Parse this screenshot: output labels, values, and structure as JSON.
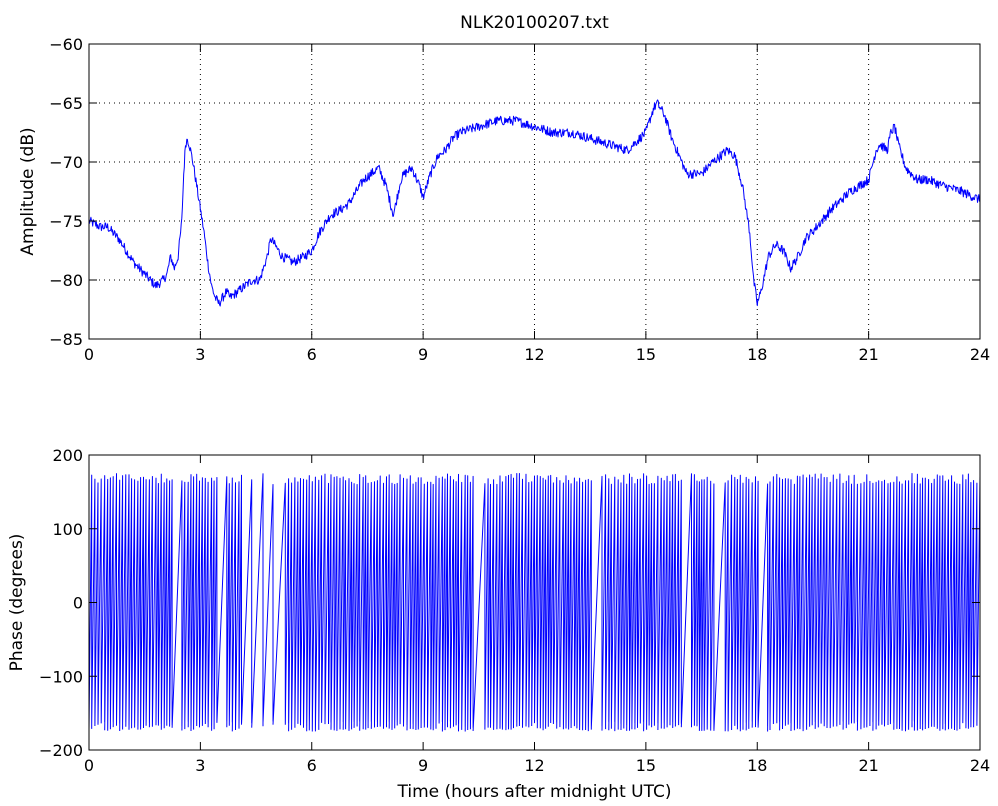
{
  "chart_data": [
    {
      "type": "line",
      "title": "NLK20100207.txt",
      "xlabel": "",
      "ylabel": "Amplitude (dB)",
      "xlim": [
        0,
        24
      ],
      "ylim": [
        -85,
        -60
      ],
      "xticks": [
        "0",
        "3",
        "6",
        "9",
        "12",
        "15",
        "18",
        "21",
        "24"
      ],
      "yticks": [
        "-85",
        "-80",
        "-75",
        "-70",
        "-65",
        "-60"
      ],
      "grid": true,
      "series": [
        {
          "color": "#0000ff",
          "x": [
            0,
            0.3,
            0.5,
            0.8,
            1.0,
            1.2,
            1.5,
            1.8,
            2.0,
            2.1,
            2.2,
            2.3,
            2.4,
            2.5,
            2.55,
            2.6,
            2.65,
            2.7,
            2.8,
            2.9,
            3.0,
            3.1,
            3.2,
            3.3,
            3.4,
            3.5,
            3.6,
            3.7,
            3.8,
            4.0,
            4.2,
            4.4,
            4.6,
            4.8,
            4.9,
            5.0,
            5.2,
            5.5,
            5.8,
            6.0,
            6.2,
            6.5,
            6.8,
            7.0,
            7.2,
            7.4,
            7.6,
            7.8,
            8.0,
            8.2,
            8.4,
            8.5,
            8.7,
            8.9,
            9.0,
            9.2,
            9.4,
            9.6,
            9.8,
            10.0,
            10.5,
            11.0,
            11.5,
            12.0,
            12.5,
            13.0,
            13.5,
            14.0,
            14.5,
            15.0,
            15.1,
            15.2,
            15.3,
            15.5,
            15.7,
            15.9,
            16.1,
            16.3,
            16.5,
            16.8,
            17.0,
            17.2,
            17.4,
            17.6,
            17.8,
            17.9,
            18.0,
            18.1,
            18.3,
            18.5,
            18.7,
            18.9,
            19.1,
            19.3,
            19.6,
            20.0,
            20.5,
            21.0,
            21.2,
            21.3,
            21.5,
            21.6,
            21.7,
            21.8,
            22.0,
            22.3,
            22.6,
            23.0,
            23.5,
            24.0
          ],
          "y": [
            -75,
            -75.5,
            -75.5,
            -76.5,
            -77.5,
            -78.5,
            -79.5,
            -80.5,
            -80,
            -79.5,
            -78,
            -79,
            -78,
            -75,
            -71,
            -68.5,
            -68,
            -68.5,
            -70,
            -72,
            -74,
            -76,
            -78.5,
            -80.5,
            -81.5,
            -82,
            -81.5,
            -81,
            -81.5,
            -81,
            -80.5,
            -80,
            -80,
            -78,
            -76.5,
            -77,
            -78,
            -78.5,
            -78,
            -77.5,
            -76,
            -74.5,
            -74,
            -73.5,
            -72.5,
            -71.5,
            -71,
            -70.5,
            -72,
            -74.5,
            -71.5,
            -71,
            -70.5,
            -72,
            -73,
            -71,
            -69.5,
            -69,
            -68,
            -67.5,
            -67,
            -66.5,
            -66.5,
            -67,
            -67.5,
            -67.5,
            -68,
            -68.5,
            -69,
            -67.5,
            -66.5,
            -65.5,
            -65,
            -66,
            -68,
            -69.5,
            -71,
            -71,
            -71,
            -70,
            -69.5,
            -69,
            -69.5,
            -72,
            -76,
            -80,
            -82,
            -81,
            -78,
            -77,
            -77.5,
            -79,
            -78,
            -76.5,
            -75.5,
            -74,
            -72.5,
            -71.5,
            -69,
            -68.5,
            -69,
            -67.5,
            -67,
            -68.5,
            -70.5,
            -71.5,
            -71.5,
            -72,
            -72.5,
            -73.2
          ]
        }
      ]
    },
    {
      "type": "line",
      "title": "",
      "xlabel": "Time (hours after midnight UTC)",
      "ylabel": "Phase (degrees)",
      "xlim": [
        0,
        24
      ],
      "ylim": [
        -200,
        200
      ],
      "xticks": [
        "0",
        "3",
        "6",
        "9",
        "12",
        "15",
        "18",
        "21",
        "24"
      ],
      "yticks": [
        "-200",
        "-100",
        "0",
        "100",
        "200"
      ],
      "grid": false,
      "series": [
        {
          "color": "#0000ff",
          "sawtooth": {
            "min": -175,
            "max": 175,
            "wrap_period_hours": 0.08,
            "sparse_intervals": [
              [
                2.2,
                2.4
              ],
              [
                3.4,
                3.7
              ],
              [
                4.1,
                5.2
              ],
              [
                10.3,
                10.6
              ],
              [
                13.5,
                13.75
              ],
              [
                15.9,
                16.2
              ],
              [
                16.8,
                17.0
              ],
              [
                18.0,
                18.2
              ]
            ]
          }
        }
      ]
    }
  ]
}
